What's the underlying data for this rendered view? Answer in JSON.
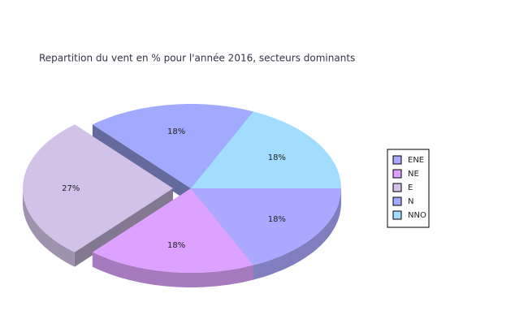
{
  "chart_data": {
    "type": "pie",
    "title": "Repartition du vent en % pour l'année 2016, secteurs dominants",
    "categories": [
      "ENE",
      "NE",
      "E",
      "N",
      "NNO"
    ],
    "values": [
      18,
      18,
      27,
      18,
      18
    ],
    "value_labels": [
      "18%",
      "18%",
      "27%",
      "18%",
      "18%"
    ],
    "colors": [
      "#aaa8ff",
      "#dda2ff",
      "#d2c2e8",
      "#a2aaff",
      "#a2ddff"
    ],
    "explode": [
      false,
      false,
      true,
      false,
      false
    ],
    "legend": "right"
  }
}
